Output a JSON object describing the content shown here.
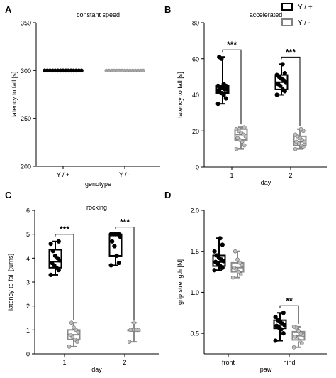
{
  "legend": {
    "items": [
      {
        "label": "Y / +",
        "color": "#000000"
      },
      {
        "label": "Y / -",
        "color": "#808080"
      }
    ]
  },
  "colors": {
    "wt": "#000000",
    "mut": "#8a8a8a",
    "mut_fill": "#bdbdbd"
  },
  "chart_data": [
    {
      "id": "A",
      "panel_letter": "A",
      "type": "scatter",
      "title": "constant speed",
      "xlabel": "genotype",
      "ylabel": "latency to fall [s]",
      "ylim": [
        200,
        350
      ],
      "yticks": [
        200,
        250,
        300,
        350
      ],
      "categories": [
        "Y / +",
        "Y / -"
      ],
      "series": [
        {
          "group": "wt",
          "category": "Y / +",
          "points": [
            300,
            300,
            300,
            300,
            300,
            300,
            300,
            300,
            300,
            300,
            300,
            300,
            300,
            300,
            300
          ]
        },
        {
          "group": "mut",
          "category": "Y / -",
          "points": [
            300,
            300,
            300,
            300,
            300,
            300,
            300,
            300,
            300,
            300,
            300,
            300,
            300,
            300,
            300
          ]
        }
      ]
    },
    {
      "id": "B",
      "panel_letter": "B",
      "type": "box",
      "title": "accelerated",
      "xlabel": "day",
      "ylabel": "latency to fall [s]",
      "ylim": [
        0,
        80
      ],
      "yticks": [
        0,
        20,
        40,
        60,
        80
      ],
      "categories": [
        "1",
        "2"
      ],
      "boxes": [
        {
          "category": "1",
          "group": "wt",
          "min": 35,
          "q1": 41,
          "median": 43,
          "q3": 45,
          "max": 61,
          "points": [
            35,
            38,
            40,
            41,
            42,
            43,
            43,
            44,
            44,
            45,
            45,
            46,
            60,
            61
          ]
        },
        {
          "category": "1",
          "group": "mut",
          "min": 10,
          "q1": 15,
          "median": 18,
          "q3": 21,
          "max": 22,
          "points": [
            10,
            12,
            14,
            15,
            16,
            17,
            18,
            19,
            20,
            21,
            22
          ]
        },
        {
          "category": "2",
          "group": "wt",
          "min": 40,
          "q1": 43,
          "median": 47,
          "q3": 51,
          "max": 57,
          "points": [
            40,
            42,
            43,
            45,
            46,
            47,
            48,
            49,
            50,
            51,
            52,
            57
          ]
        },
        {
          "category": "2",
          "group": "mut",
          "min": 10,
          "q1": 12,
          "median": 14,
          "q3": 17,
          "max": 21,
          "points": [
            10,
            11,
            12,
            13,
            14,
            14,
            15,
            16,
            17,
            18,
            20,
            21
          ]
        }
      ],
      "annotations": [
        {
          "category": "1",
          "text": "***"
        },
        {
          "category": "2",
          "text": "***"
        }
      ]
    },
    {
      "id": "C",
      "panel_letter": "C",
      "type": "box",
      "title": "rocking",
      "xlabel": "day",
      "ylabel": "latency to fall [turns]",
      "ylim": [
        0,
        6
      ],
      "yticks": [
        0,
        1,
        2,
        3,
        4,
        5,
        6
      ],
      "categories": [
        "1",
        "2"
      ],
      "boxes": [
        {
          "category": "1",
          "group": "wt",
          "min": 3.3,
          "q1": 3.6,
          "median": 3.85,
          "q3": 4.35,
          "max": 4.7,
          "points": [
            3.3,
            3.5,
            3.6,
            3.7,
            3.8,
            3.9,
            4.0,
            4.1,
            4.3,
            4.6,
            4.7
          ]
        },
        {
          "category": "1",
          "group": "mut",
          "min": 0.3,
          "q1": 0.6,
          "median": 0.8,
          "q3": 1.0,
          "max": 1.3,
          "points": [
            0.3,
            0.5,
            0.6,
            0.7,
            0.8,
            0.9,
            1.0,
            1.1,
            1.3
          ]
        },
        {
          "category": "2",
          "group": "wt",
          "min": 3.7,
          "q1": 4.1,
          "median": 4.95,
          "q3": 5.0,
          "max": 5.0,
          "points": [
            3.7,
            3.8,
            4.1,
            4.5,
            4.7,
            4.9,
            5.0,
            5.0,
            5.0,
            5.0,
            5.0
          ]
        },
        {
          "category": "2",
          "group": "mut",
          "min": 0.5,
          "q1": 1.0,
          "median": 1.0,
          "q3": 1.0,
          "max": 1.3,
          "points": [
            0.5,
            1.0,
            1.0,
            1.0,
            1.0,
            1.0,
            1.0,
            1.3
          ]
        }
      ],
      "annotations": [
        {
          "category": "1",
          "text": "***"
        },
        {
          "category": "2",
          "text": "***"
        }
      ]
    },
    {
      "id": "D",
      "panel_letter": "D",
      "type": "box",
      "title": "",
      "xlabel": "paw",
      "ylabel": "grip strength [N]",
      "ylim": [
        0,
        2.0
      ],
      "ymin_axis": 0.25,
      "yticks": [
        0.5,
        1.0,
        1.5,
        2.0
      ],
      "yticklabels": [
        "0.5",
        "1.0",
        "1.5",
        "2.0"
      ],
      "categories": [
        "front",
        "hind"
      ],
      "boxes": [
        {
          "category": "front",
          "group": "wt",
          "min": 1.27,
          "q1": 1.32,
          "median": 1.37,
          "q3": 1.45,
          "max": 1.66,
          "points": [
            1.27,
            1.3,
            1.32,
            1.35,
            1.37,
            1.38,
            1.4,
            1.42,
            1.45,
            1.5,
            1.58,
            1.66
          ]
        },
        {
          "category": "front",
          "group": "mut",
          "min": 1.18,
          "q1": 1.25,
          "median": 1.3,
          "q3": 1.36,
          "max": 1.5,
          "points": [
            1.18,
            1.22,
            1.25,
            1.28,
            1.3,
            1.33,
            1.36,
            1.4,
            1.5
          ]
        },
        {
          "category": "hind",
          "group": "wt",
          "min": 0.41,
          "q1": 0.56,
          "median": 0.6,
          "q3": 0.66,
          "max": 0.75,
          "points": [
            0.41,
            0.5,
            0.55,
            0.57,
            0.59,
            0.6,
            0.62,
            0.64,
            0.66,
            0.7,
            0.75
          ]
        },
        {
          "category": "hind",
          "group": "mut",
          "min": 0.33,
          "q1": 0.42,
          "median": 0.47,
          "q3": 0.52,
          "max": 0.58,
          "points": [
            0.33,
            0.38,
            0.41,
            0.44,
            0.46,
            0.48,
            0.5,
            0.53,
            0.57,
            0.58
          ]
        }
      ],
      "annotations": [
        {
          "category": "hind",
          "text": "**"
        }
      ]
    }
  ]
}
